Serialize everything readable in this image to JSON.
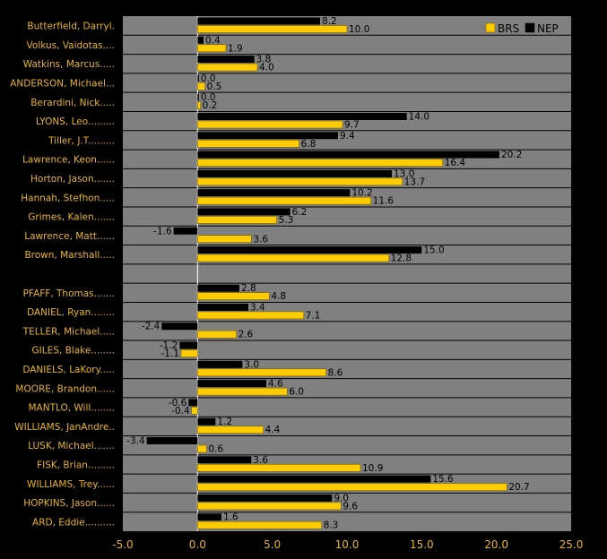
{
  "chart_data": {
    "type": "bar",
    "orientation": "horizontal",
    "xlim": [
      -5,
      25
    ],
    "x_ticks": [
      "-5.0",
      "0.0",
      "5.0",
      "10.0",
      "15.0",
      "20.0",
      "25.0"
    ],
    "grid": true,
    "legend_position": "top-right",
    "colors": {
      "BRS": "#ffcc00",
      "NEP": "#000000",
      "plot_bg": "#808080",
      "page_bg": "#000000",
      "text": "#e8b52a"
    },
    "categories": [
      "Butterfield, Darryl.",
      "Volkus, Vaidotas....",
      "Watkins, Marcus.....",
      "ANDERSON, Michael...",
      "Berardini, Nick.....",
      "LYONS, Leo.........",
      "Tiller, J.T.........",
      "Lawrence, Keon......",
      "Horton, Jason.......",
      "Hannah, Stefhon.....",
      "Grimes, Kalen.......",
      "Lawrence, Matt......",
      "Brown, Marshall.....",
      "",
      "PFAFF, Thomas.......",
      "DANIEL, Ryan........",
      "TELLER, Michael.....",
      "GILES, Blake........",
      "DANIELS, LaKory.....",
      "MOORE, Brandon......",
      "MANTLO, Will........",
      "WILLIAMS, JanAndre..",
      "LUSK, Michael.......",
      "FISK, Brian.........",
      "WILLIAMS, Trey......",
      "HOPKINS, Jason......",
      "ARD, Eddie.........."
    ],
    "series": [
      {
        "name": "NEP",
        "values": [
          8.2,
          0.4,
          3.8,
          0.0,
          0.0,
          14.0,
          9.4,
          20.2,
          13.0,
          10.2,
          6.2,
          -1.6,
          15.0,
          null,
          2.8,
          3.4,
          -2.4,
          -1.2,
          3.0,
          4.6,
          -0.6,
          1.2,
          -3.4,
          3.6,
          15.6,
          9.0,
          1.6
        ],
        "labels": [
          "8.2",
          "0.4",
          "3.8",
          "0.0",
          "0.0",
          "14.0",
          "9.4",
          "20.2",
          "13.0",
          "10.2",
          "6.2",
          "-1.6",
          "15.0",
          "",
          "2.8",
          "3.4",
          "-2.4",
          "-1.2",
          "3.0",
          "4.6",
          "-0.6",
          "1.2",
          "-3.4",
          "3.6",
          "15.6",
          "9.0",
          "1.6"
        ]
      },
      {
        "name": "BRS",
        "values": [
          10.0,
          1.9,
          4.0,
          0.5,
          0.2,
          9.7,
          6.8,
          16.4,
          13.7,
          11.6,
          5.3,
          3.6,
          12.8,
          null,
          4.8,
          7.1,
          2.6,
          -1.1,
          8.6,
          6.0,
          -0.4,
          4.4,
          0.6,
          10.9,
          20.7,
          9.6,
          8.3
        ],
        "labels": [
          "10.0",
          "1.9",
          "4.0",
          "0.5",
          "0.2",
          "9.7",
          "6.8",
          "16.4",
          "13.7",
          "11.6",
          "5.3",
          "3.6",
          "12.8",
          "",
          "4.8",
          "7.1",
          "2.6",
          "-1.1",
          "8.6",
          "6.0",
          "-0.4",
          "4.4",
          "0.6",
          "10.9",
          "20.7",
          "9.6",
          "8.3"
        ]
      }
    ],
    "legend": [
      {
        "name": "BRS",
        "color": "#ffcc00"
      },
      {
        "name": "NEP",
        "color": "#000000"
      }
    ]
  }
}
